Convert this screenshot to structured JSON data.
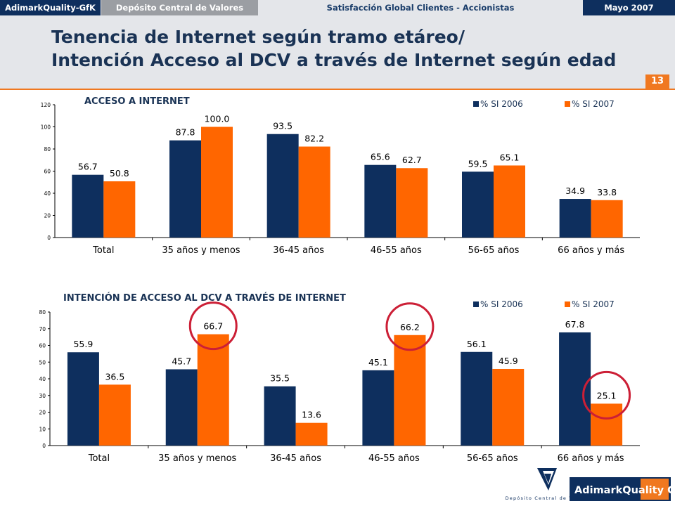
{
  "header": {
    "brand_tag": "AdimarkQuality-GfK",
    "dcv_tag": "Depósito Central de Valores",
    "survey_tag": "Satisfacción Global Clientes - Accionistas",
    "date_tag": "Mayo 2007",
    "title_line1": "Tenencia de Internet según tramo etáreo/",
    "title_line2": "Intención Acceso al DCV a través de Internet según edad",
    "page_number": "13"
  },
  "colors": {
    "si2006": "#0e2f5e",
    "si2007": "#ff6600",
    "highlight": "#cc1f36",
    "accent": "#f07820"
  },
  "chart_data": [
    {
      "type": "bar",
      "title": "ACCESO A INTERNET",
      "categories": [
        "Total",
        "35 años y menos",
        "36-45 años",
        "46-55 años",
        "56-65 años",
        "66 años y más"
      ],
      "series": [
        {
          "name": "% SI 2006",
          "values": [
            56.7,
            87.8,
            93.5,
            65.6,
            59.5,
            34.9
          ]
        },
        {
          "name": "% SI 2007",
          "values": [
            50.8,
            100.0,
            82.2,
            62.7,
            65.1,
            33.8
          ]
        }
      ],
      "ylim": [
        0,
        120
      ],
      "yticks": [
        "0",
        "20",
        "40",
        "60",
        "80",
        "100",
        "120"
      ],
      "legend": "top-right"
    },
    {
      "type": "bar",
      "title": "INTENCIÓN DE ACCESO AL DCV A TRAVÉS DE INTERNET",
      "categories": [
        "Total",
        "35 años y menos",
        "36-45 años",
        "46-55 años",
        "56-65 años",
        "66 años y más"
      ],
      "series": [
        {
          "name": "% SI 2006",
          "values": [
            55.9,
            45.7,
            35.5,
            45.1,
            56.1,
            67.8
          ]
        },
        {
          "name": "% SI 2007",
          "values": [
            36.5,
            66.7,
            13.6,
            66.2,
            45.9,
            25.1
          ]
        }
      ],
      "ylim": [
        0,
        80
      ],
      "yticks": [
        "0",
        "10",
        "20",
        "30",
        "40",
        "50",
        "60",
        "70",
        "80"
      ],
      "legend": "top-right",
      "highlighted": [
        {
          "category": "35 años y menos",
          "series": "% SI 2007"
        },
        {
          "category": "46-55 años",
          "series": "% SI 2007"
        },
        {
          "category": "66 años y más",
          "series": "% SI 2007"
        }
      ]
    }
  ],
  "footer": {
    "dcv_logo_text": "Depósito Central de Valores",
    "gfk_logo_text": "AdimarkQuality GfK"
  }
}
